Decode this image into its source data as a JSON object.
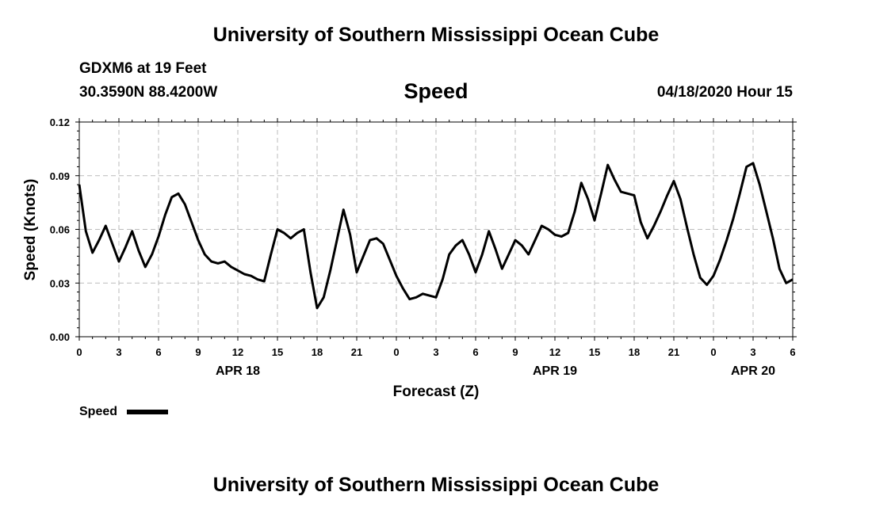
{
  "header": {
    "title": "University of Southern Mississippi Ocean Cube",
    "station": "GDXM6 at 19 Feet",
    "coords": "30.3590N 88.4200W",
    "datetime": "04/18/2020 Hour 15"
  },
  "footer": {
    "title": "University of Southern Mississippi Ocean Cube"
  },
  "chart_data": {
    "type": "line",
    "title": "Speed",
    "xlabel": "Forecast (Z)",
    "ylabel": "Speed (Knots)",
    "ylim": [
      0,
      0.12
    ],
    "yticks": [
      "0.00",
      "0.03",
      "0.06",
      "0.09",
      "0.12"
    ],
    "x_hours_range": [
      0,
      54
    ],
    "xtick_labels": [
      "0",
      "3",
      "6",
      "9",
      "12",
      "15",
      "18",
      "21",
      "0",
      "3",
      "6",
      "9",
      "12",
      "15",
      "18",
      "21",
      "0",
      "3",
      "6"
    ],
    "date_labels": [
      {
        "label": "APR 18",
        "hour": 12
      },
      {
        "label": "APR 19",
        "hour": 36
      },
      {
        "label": "APR 20",
        "hour": 51
      }
    ],
    "legend": {
      "label": "Speed",
      "position": "bottom-left"
    },
    "grid": true,
    "series": [
      {
        "name": "Speed",
        "color": "#000000",
        "x": [
          0,
          0.5,
          1,
          1.5,
          2,
          2.5,
          3,
          3.5,
          4,
          4.5,
          5,
          5.5,
          6,
          6.5,
          7,
          7.5,
          8,
          8.5,
          9,
          9.5,
          10,
          10.5,
          11,
          11.5,
          12,
          12.5,
          13,
          13.5,
          14,
          14.5,
          15,
          15.5,
          16,
          16.5,
          17,
          17.5,
          18,
          18.5,
          19,
          19.5,
          20,
          20.5,
          21,
          21.5,
          22,
          22.5,
          23,
          23.5,
          24,
          24.5,
          25,
          25.5,
          26,
          26.5,
          27,
          27.5,
          28,
          28.5,
          29,
          29.5,
          30,
          30.5,
          31,
          31.5,
          32,
          32.5,
          33,
          33.5,
          34,
          34.5,
          35,
          35.5,
          36,
          36.5,
          37,
          37.5,
          38,
          38.5,
          39,
          39.5,
          40,
          40.5,
          41,
          41.5,
          42,
          42.5,
          43,
          43.5,
          44,
          44.5,
          45,
          45.5,
          46,
          46.5,
          47,
          47.5,
          48,
          48.5,
          49,
          49.5,
          50,
          50.5,
          51,
          51.5,
          52,
          52.5,
          53,
          53.5,
          54
        ],
        "values": [
          0.085,
          0.059,
          0.047,
          0.054,
          0.062,
          0.052,
          0.042,
          0.05,
          0.059,
          0.048,
          0.039,
          0.046,
          0.056,
          0.068,
          0.078,
          0.08,
          0.074,
          0.064,
          0.054,
          0.046,
          0.042,
          0.041,
          0.042,
          0.039,
          0.037,
          0.035,
          0.034,
          0.032,
          0.031,
          0.046,
          0.06,
          0.058,
          0.055,
          0.058,
          0.06,
          0.036,
          0.016,
          0.022,
          0.037,
          0.054,
          0.071,
          0.057,
          0.036,
          0.045,
          0.054,
          0.055,
          0.052,
          0.043,
          0.034,
          0.027,
          0.021,
          0.022,
          0.024,
          0.023,
          0.022,
          0.032,
          0.046,
          0.051,
          0.054,
          0.046,
          0.036,
          0.046,
          0.059,
          0.049,
          0.038,
          0.046,
          0.054,
          0.051,
          0.046,
          0.054,
          0.062,
          0.06,
          0.057,
          0.056,
          0.058,
          0.07,
          0.086,
          0.077,
          0.065,
          0.08,
          0.096,
          0.088,
          0.081,
          0.08,
          0.079,
          0.064,
          0.055,
          0.062,
          0.07,
          0.079,
          0.087,
          0.077,
          0.061,
          0.046,
          0.033,
          0.029,
          0.034,
          0.043,
          0.054,
          0.066,
          0.08,
          0.095,
          0.097,
          0.085,
          0.07,
          0.055,
          0.038,
          0.03,
          0.032
        ]
      }
    ]
  }
}
